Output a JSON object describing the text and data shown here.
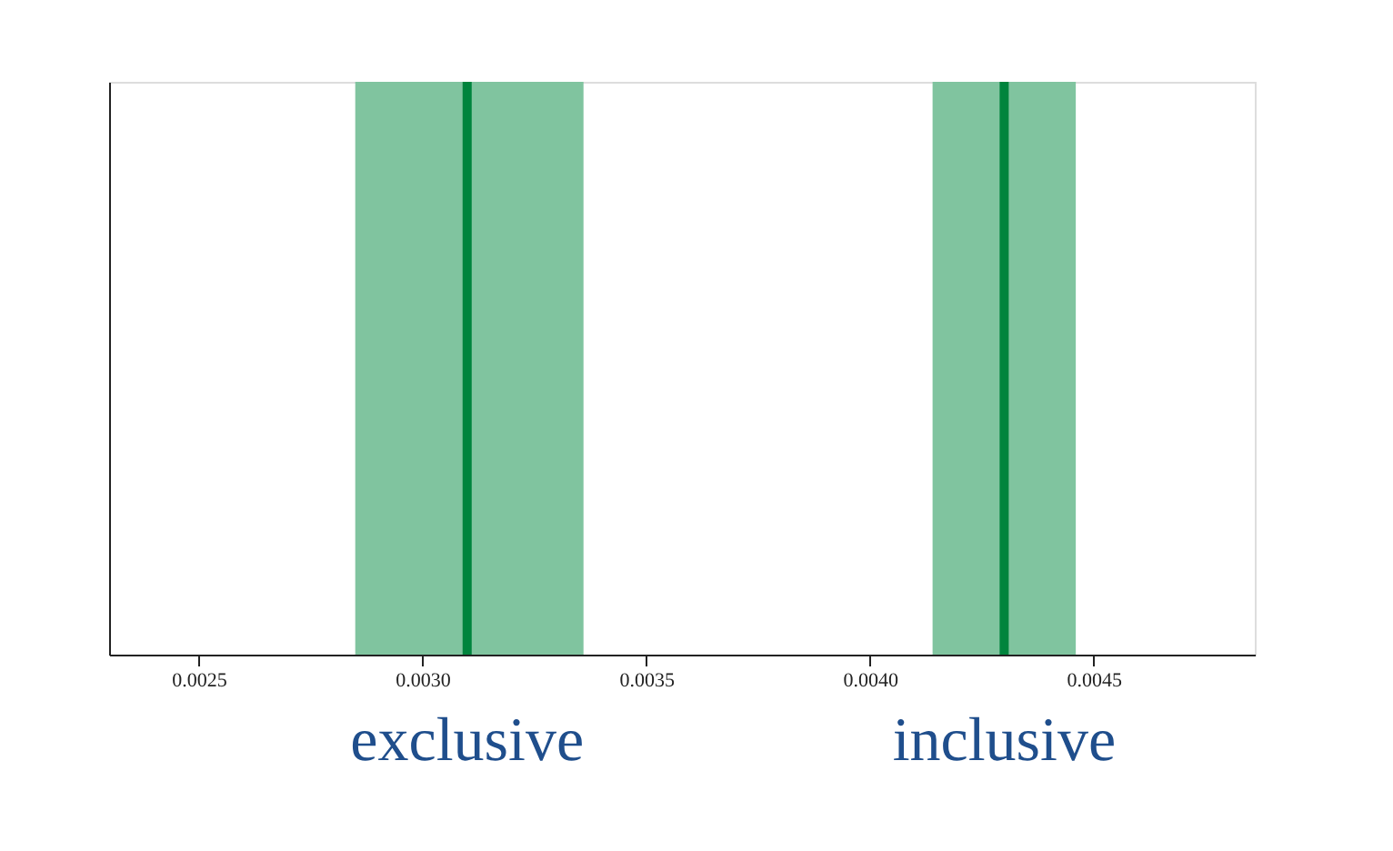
{
  "chart_data": {
    "type": "bar",
    "orientation": "horizontal",
    "categories": [
      null
    ],
    "series": [
      {
        "color": "#80c49f",
        "base": [
          0.00285
        ],
        "values": [
          0.00051
        ]
      },
      {
        "color": "#80c49f",
        "base": [
          0.00414
        ],
        "values": [
          0.00032
        ]
      }
    ],
    "xlim": [
      0.0023,
      0.00486
    ],
    "xticks": [
      {
        "value": 0.0025,
        "label": "0.0025"
      },
      {
        "value": 0.003,
        "label": "0.0030"
      },
      {
        "value": 0.0035,
        "label": "0.0035"
      },
      {
        "value": 0.004,
        "label": "0.0040"
      },
      {
        "value": 0.0045,
        "label": "0.0045"
      }
    ],
    "tick_labels": "x",
    "ref_lines": [
      {
        "axis": "x",
        "value": 0.0031,
        "label": "exclusive",
        "color": "#00843d",
        "line_style": "solid"
      },
      {
        "axis": "x",
        "value": 0.0043,
        "label": "inclusive",
        "color": "#00843d",
        "line_style": "solid"
      }
    ]
  }
}
